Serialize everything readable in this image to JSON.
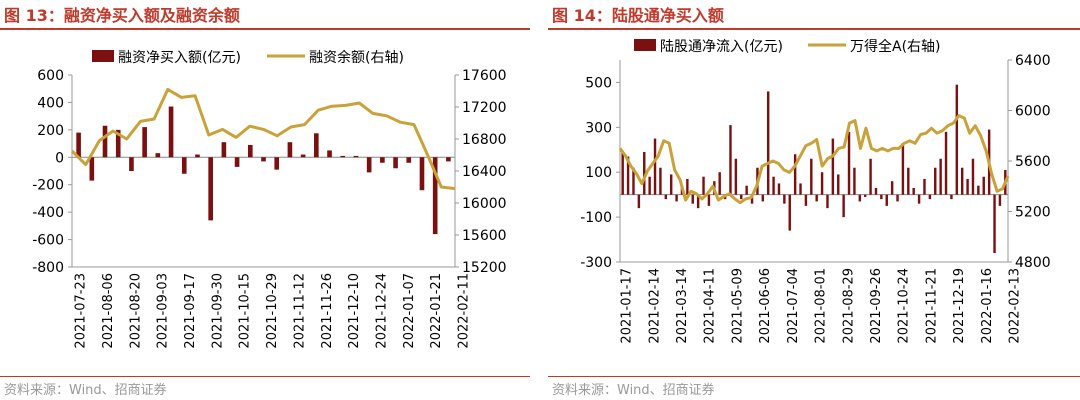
{
  "colors": {
    "bar": "#7b1010",
    "line": "#c9a23a",
    "title": "#c0392b",
    "source": "#999999"
  },
  "panels": [
    {
      "title": "图 13：融资净买入额及融资余额",
      "source": "资料来源：Wind、招商证券",
      "chart_data": {
        "type": "bar+line",
        "legend": [
          "融资净买入额(亿元)",
          "融资余额(右轴)"
        ],
        "left_axis": {
          "min": -800,
          "max": 600,
          "ticks": [
            600,
            400,
            200,
            0,
            -200,
            -400,
            -600,
            -800
          ]
        },
        "right_axis": {
          "min": 15200,
          "max": 17600,
          "ticks": [
            17600,
            17200,
            16800,
            16400,
            16000,
            15600,
            15200
          ]
        },
        "x_ticks": [
          "2021-07-23",
          "2021-08-06",
          "2021-08-20",
          "2021-09-03",
          "2021-09-17",
          "2021-09-30",
          "2021-10-15",
          "2021-10-29",
          "2021-11-12",
          "2021-11-26",
          "2021-12-10",
          "2021-12-24",
          "2022-01-07",
          "2022-01-21",
          "2022-02-11"
        ],
        "bars": [
          180,
          -170,
          230,
          200,
          -100,
          220,
          30,
          370,
          -120,
          20,
          -460,
          110,
          -70,
          90,
          -30,
          -90,
          110,
          20,
          175,
          50,
          10,
          10,
          -110,
          -40,
          -80,
          -40,
          -240,
          -560,
          -30
        ],
        "line": [
          16650,
          16480,
          16780,
          16900,
          16800,
          17020,
          17050,
          17420,
          17320,
          17340,
          16850,
          16920,
          16820,
          16960,
          16920,
          16840,
          16950,
          16980,
          17160,
          17210,
          17220,
          17250,
          17120,
          17090,
          17010,
          16980,
          16600,
          16200,
          16180
        ]
      }
    },
    {
      "title": "图 14：陆股通净买入额",
      "source": "资料来源：Wind、招商证券",
      "chart_data": {
        "type": "bar+line",
        "legend": [
          "陆股通净流入(亿元)",
          "万得全A(右轴)"
        ],
        "left_axis": {
          "min": -300,
          "max": 600,
          "ticks": [
            500,
            300,
            100,
            -100,
            -300
          ]
        },
        "right_axis": {
          "min": 4800,
          "max": 6400,
          "ticks": [
            6400,
            6000,
            5600,
            5200,
            4800
          ]
        },
        "x_ticks": [
          "2021-01-17",
          "2021-02-14",
          "2021-03-14",
          "2021-04-11",
          "2021-05-09",
          "2021-06-06",
          "2021-07-04",
          "2021-08-01",
          "2021-08-29",
          "2021-09-26",
          "2021-10-24",
          "2021-11-21",
          "2021-12-19",
          "2022-01-16",
          "2022-02-13"
        ],
        "bars": [
          190,
          170,
          120,
          -60,
          190,
          80,
          250,
          120,
          -20,
          90,
          -30,
          40,
          70,
          -40,
          -60,
          80,
          -50,
          60,
          100,
          -20,
          310,
          160,
          -20,
          40,
          -40,
          120,
          -30,
          460,
          80,
          50,
          -40,
          -160,
          180,
          50,
          -50,
          160,
          -30,
          100,
          -60,
          250,
          90,
          -100,
          280,
          120,
          -30,
          -10,
          160,
          30,
          -20,
          -50,
          60,
          -30,
          230,
          120,
          30,
          -40,
          70,
          -20,
          120,
          160,
          280,
          -20,
          490,
          120,
          70,
          160,
          40,
          80,
          290,
          -260,
          -50,
          110
        ],
        "line": [
          5700,
          5640,
          5560,
          5500,
          5420,
          5520,
          5580,
          5640,
          5760,
          5740,
          5530,
          5450,
          5290,
          5360,
          5340,
          5300,
          5340,
          5400,
          5290,
          5320,
          5340,
          5300,
          5270,
          5300,
          5310,
          5400,
          5560,
          5580,
          5600,
          5580,
          5530,
          5510,
          5560,
          5640,
          5720,
          5740,
          5770,
          5560,
          5620,
          5640,
          5700,
          5710,
          5900,
          5920,
          5700,
          5860,
          5700,
          5680,
          5700,
          5680,
          5700,
          5700,
          5740,
          5760,
          5740,
          5810,
          5820,
          5860,
          5820,
          5840,
          5880,
          5900,
          5960,
          5940,
          5820,
          5880,
          5800,
          5680,
          5500,
          5360,
          5380,
          5480
        ]
      }
    }
  ]
}
